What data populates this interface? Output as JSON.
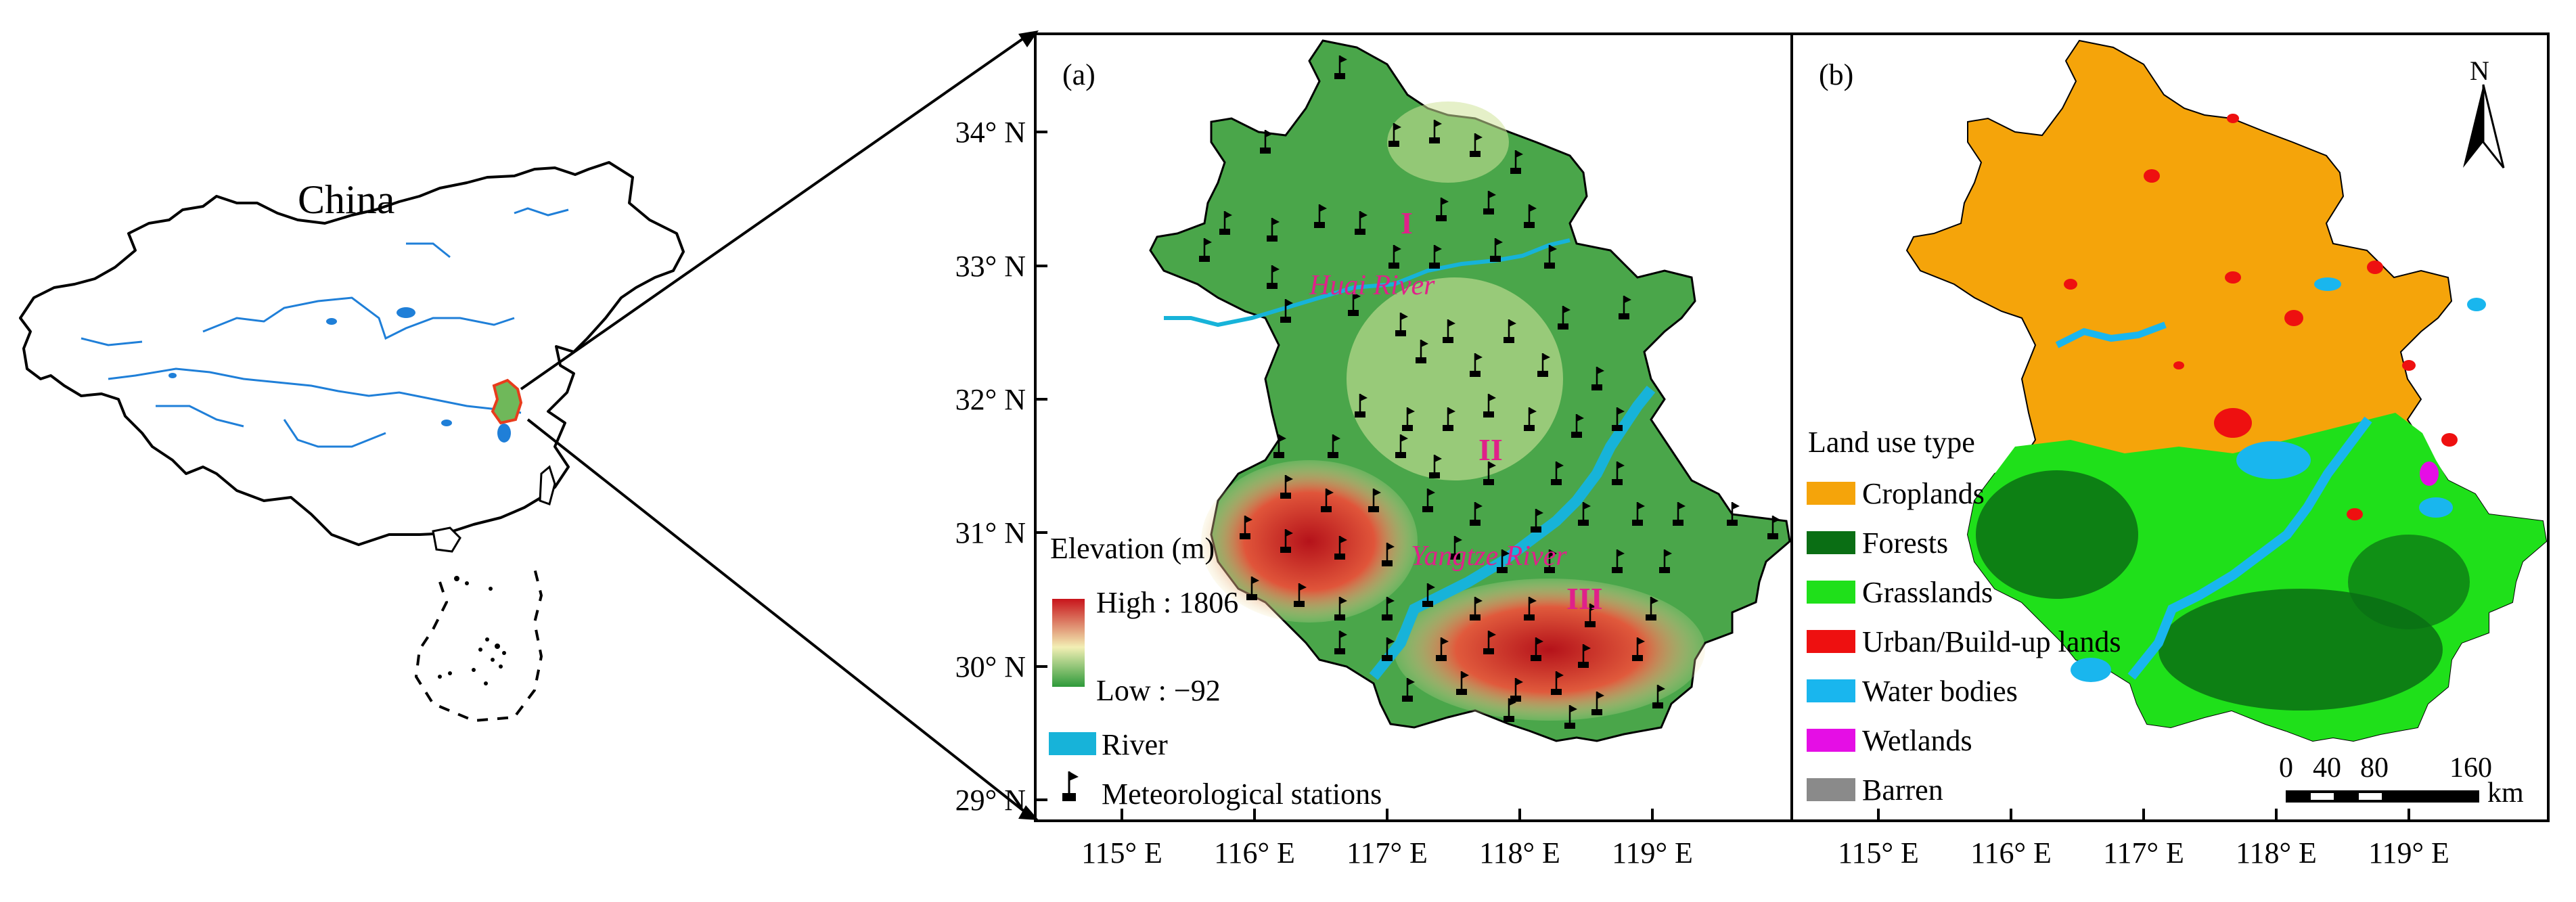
{
  "china": {
    "label": "China"
  },
  "panel_a": {
    "tag": "(a)",
    "region_labels": [
      "I",
      "II",
      "III"
    ],
    "rivers": {
      "huai": "Huai River",
      "yangtze": "Yangtze River"
    },
    "legend": {
      "elevation_title": "Elevation (m)",
      "high": "High : 1806",
      "low": "Low : −92",
      "river": "River",
      "stations": "Meteorological stations"
    },
    "colors": {
      "low": "#2e9a3a",
      "mid": "#f2efb4",
      "high": "#c8141b",
      "river": "#17b3d9"
    }
  },
  "panel_b": {
    "tag": "(b)",
    "north": "N",
    "legend_title": "Land use type",
    "land_use": [
      {
        "label": "Croplands",
        "color": "#f5a40a"
      },
      {
        "label": "Forests",
        "color": "#0a6e14"
      },
      {
        "label": "Grasslands",
        "color": "#1fe01a"
      },
      {
        "label": "Urban/Build-up lands",
        "color": "#ee1010"
      },
      {
        "label": "Water bodies",
        "color": "#19b6ee"
      },
      {
        "label": "Wetlands",
        "color": "#e50ee5"
      },
      {
        "label": "Barren",
        "color": "#8a8a8a"
      }
    ],
    "scale_labels": [
      "0",
      "40",
      "80",
      "160"
    ],
    "scale_unit": "km"
  },
  "axes": {
    "lat_ticks": [
      "34° N",
      "33° N",
      "32° N",
      "31° N",
      "30° N",
      "29° N"
    ],
    "lon_ticks_a": [
      "115° E",
      "116° E",
      "117° E",
      "118° E",
      "119° E"
    ],
    "lon_ticks_b": [
      "115° E",
      "116° E",
      "117° E",
      "118° E",
      "119° E"
    ]
  }
}
